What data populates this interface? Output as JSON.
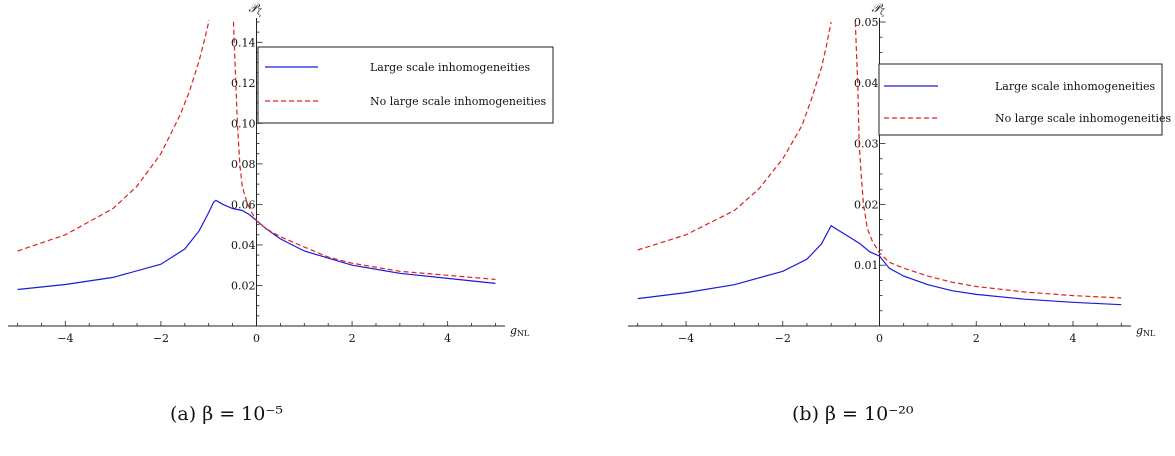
{
  "chart_data": [
    {
      "type": "line",
      "caption": "(a) β = 10⁻⁵",
      "xlabel": "g",
      "xlabel_sub": "NL",
      "ylabel": "𝒫",
      "ylabel_sub": "ζ",
      "xlim": [
        -5.2,
        5.2
      ],
      "ylim": [
        0.0,
        0.15
      ],
      "xticks": [
        -4,
        -2,
        0,
        2,
        4
      ],
      "yticks": [
        0.02,
        0.04,
        0.06,
        0.08,
        0.1,
        0.12,
        0.14
      ],
      "ytick_labels": [
        "0.02",
        "0.04",
        "0.06",
        "0.08",
        "0.10",
        "0.12",
        "0.14"
      ],
      "legend_position": "top-right",
      "series": [
        {
          "name": "Large scale inhomogeneities",
          "style": "solid",
          "color": "#1a1adb",
          "x": [
            -5.0,
            -4.0,
            -3.0,
            -2.0,
            -1.5,
            -1.2,
            -1.0,
            -0.9,
            -0.85,
            -0.7,
            -0.5,
            -0.3,
            -0.15,
            0.0,
            0.2,
            0.5,
            1.0,
            1.5,
            2.0,
            3.0,
            4.0,
            5.0
          ],
          "y": [
            0.018,
            0.0205,
            0.024,
            0.0305,
            0.038,
            0.047,
            0.056,
            0.061,
            0.062,
            0.06,
            0.058,
            0.057,
            0.055,
            0.052,
            0.048,
            0.043,
            0.037,
            0.0335,
            0.03,
            0.026,
            0.0235,
            0.021
          ]
        },
        {
          "name": "No large scale inhomogeneities",
          "style": "dashed",
          "color": "#e02020",
          "segments": [
            {
              "x": [
                -5.0,
                -4.0,
                -3.0,
                -2.5,
                -2.0,
                -1.6,
                -1.4,
                -1.2,
                -1.1,
                -1.0,
                -0.9
              ],
              "y": [
                0.037,
                0.045,
                0.058,
                0.069,
                0.085,
                0.104,
                0.116,
                0.131,
                0.14,
                0.15,
                0.162
              ]
            },
            {
              "x": [
                -0.5,
                -0.45,
                -0.4,
                -0.35,
                -0.3,
                -0.2,
                -0.1,
                0.0,
                0.2,
                0.5,
                1.0,
                1.5,
                2.0,
                3.0,
                4.0,
                5.0
              ],
              "y": [
                0.162,
                0.13,
                0.1,
                0.08,
                0.069,
                0.061,
                0.056,
                0.052,
                0.048,
                0.044,
                0.039,
                0.034,
                0.031,
                0.027,
                0.025,
                0.023
              ]
            }
          ]
        }
      ]
    },
    {
      "type": "line",
      "caption": "(b) β = 10⁻²⁰",
      "xlabel": "g",
      "xlabel_sub": "NL",
      "ylabel": "𝒫",
      "ylabel_sub": "ζ",
      "xlim": [
        -5.2,
        5.2
      ],
      "ylim": [
        0.0,
        0.05
      ],
      "xticks": [
        -4,
        -2,
        0,
        2,
        4
      ],
      "yticks": [
        0.01,
        0.02,
        0.03,
        0.04,
        0.05
      ],
      "ytick_labels": [
        "0.01",
        "0.02",
        "0.03",
        "0.04",
        "0.05"
      ],
      "legend_position": "top-right",
      "series": [
        {
          "name": "Large scale inhomogeneities",
          "style": "solid",
          "color": "#1a1adb",
          "x": [
            -5.0,
            -4.0,
            -3.0,
            -2.0,
            -1.5,
            -1.2,
            -1.0,
            -0.8,
            -0.6,
            -0.4,
            -0.2,
            0.0,
            0.2,
            0.5,
            1.0,
            1.5,
            2.0,
            3.0,
            4.0,
            5.0
          ],
          "y": [
            0.0045,
            0.0055,
            0.0068,
            0.009,
            0.011,
            0.0135,
            0.0165,
            0.0155,
            0.0145,
            0.0135,
            0.0122,
            0.0115,
            0.0095,
            0.0082,
            0.0068,
            0.0058,
            0.0052,
            0.0044,
            0.0039,
            0.0035
          ]
        },
        {
          "name": "No large scale inhomogeneities",
          "style": "dashed",
          "color": "#e02020",
          "segments": [
            {
              "x": [
                -5.0,
                -4.0,
                -3.0,
                -2.5,
                -2.0,
                -1.6,
                -1.4,
                -1.2,
                -1.1,
                -1.0
              ],
              "y": [
                0.0125,
                0.015,
                0.019,
                0.0225,
                0.0275,
                0.033,
                0.0375,
                0.0425,
                0.046,
                0.05
              ]
            },
            {
              "x": [
                -0.5,
                -0.45,
                -0.42,
                -0.38,
                -0.33,
                -0.25,
                -0.15,
                0.0,
                0.2,
                0.5,
                1.0,
                1.5,
                2.0,
                3.0,
                4.0,
                5.0
              ],
              "y": [
                0.05,
                0.04,
                0.03,
                0.025,
                0.02,
                0.016,
                0.014,
                0.012,
                0.0105,
                0.0095,
                0.0082,
                0.0072,
                0.0065,
                0.0056,
                0.005,
                0.0046
              ]
            }
          ]
        }
      ]
    }
  ]
}
